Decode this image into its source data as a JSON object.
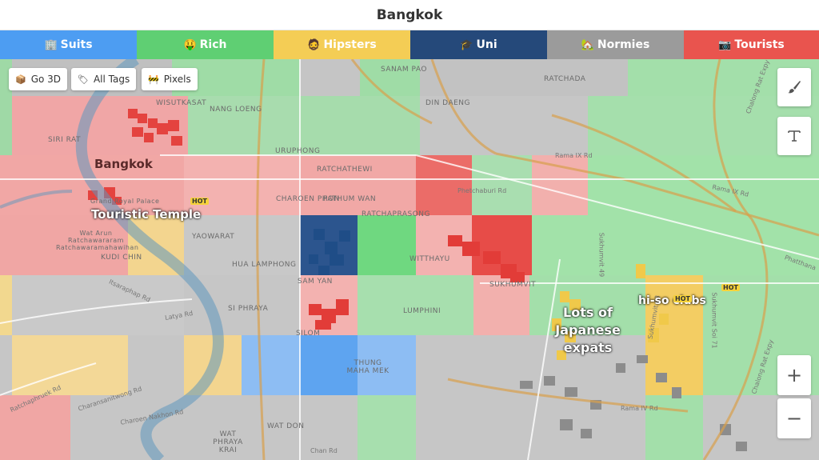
{
  "header": {
    "title": "Bangkok"
  },
  "tabs": [
    {
      "label": "Suits",
      "emoji": "🏢",
      "color": "#4d9df2"
    },
    {
      "label": "Rich",
      "emoji": "🤑",
      "color": "#5fcf73"
    },
    {
      "label": "Hipsters",
      "emoji": "🧔",
      "color": "#f4cd55"
    },
    {
      "label": "Uni",
      "emoji": "🎓",
      "color": "#25497a"
    },
    {
      "label": "Normies",
      "emoji": "🏡",
      "color": "#9b9b9b"
    },
    {
      "label": "Tourists",
      "emoji": "📷",
      "color": "#e9544e"
    }
  ],
  "controls": {
    "go3d": "Go 3D",
    "all_tags": "All Tags",
    "pixels": "Pixels",
    "zoom_in": "+",
    "zoom_out": "−"
  },
  "map": {
    "city_label": "Bangkok",
    "tags": {
      "temple": "Touristic Temple",
      "japanese": "Lots of Japanese expats",
      "hiso": "hi-so clubs"
    },
    "hot_label": "HOT",
    "districts": [
      "SANAM PAO",
      "RATCHADA",
      "WISUTKASAT",
      "NANG LOENG",
      "DIN DAENG",
      "SIRI RAT",
      "URUPHONG",
      "RATCHATHEWI",
      "CHAROEN PHON",
      "PATHUM WAN",
      "RATCHAPRASONG",
      "YAOWARAT",
      "WITTHAYU",
      "KUDI CHIN",
      "HUA LAMPHONG",
      "SAM YAN",
      "SI PHRAYA",
      "LUMPHINI",
      "SILOM",
      "THUNG MAHA MEK",
      "WAT DON",
      "WAT PHRAYA KRAI",
      "SUKHUMVIT",
      "Grand Royal Palace",
      "Wat Arun Ratchawararam Ratchawaramahawihan"
    ],
    "roads": [
      "Rama IX Rd",
      "Phetchaburi Rd",
      "Rama IX Rd",
      "Latya Rd",
      "Itsaraphap Rd",
      "Charansanitwong Rd",
      "Ratchaphruek Rd",
      "Charoen Nakhon Rd",
      "Chan Rd",
      "Rama IV Rd",
      "Sukhumvit Soi 71",
      "Chalong Rat Expy",
      "Phatthana",
      "Sukhumvit 49",
      "Sukhumvit 63",
      "Chalong Rat Expy"
    ]
  }
}
